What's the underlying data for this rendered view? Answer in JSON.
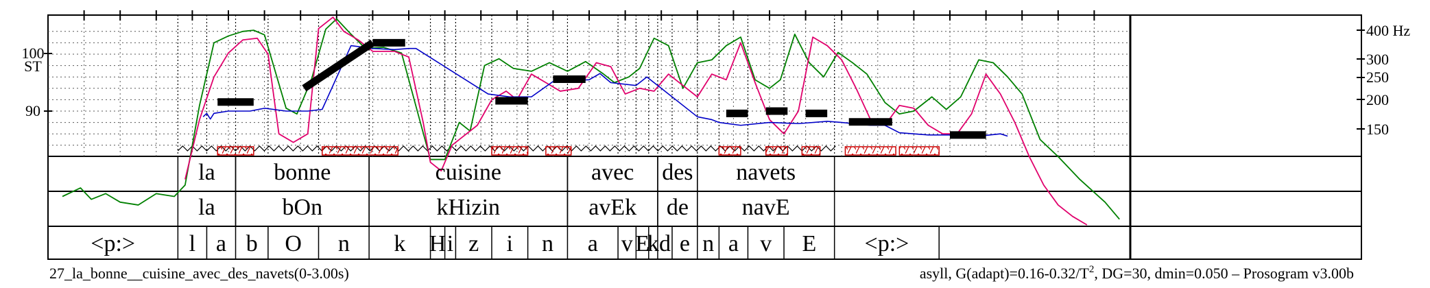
{
  "chart_data": {
    "type": "line",
    "time_range": [
      0,
      3.0
    ],
    "st_axis": {
      "ticks": [
        {
          "value": 90,
          "label": "90"
        },
        {
          "value": 100,
          "label": "100"
        }
      ],
      "unit": "ST"
    },
    "hz_axis": {
      "ticks": [
        {
          "value": 150,
          "label": "150"
        },
        {
          "value": 200,
          "label": "200"
        },
        {
          "value": 250,
          "label": "250"
        },
        {
          "value": 300,
          "label": "300"
        },
        {
          "value": 400,
          "label": "400 Hz"
        }
      ]
    },
    "words_tier": [
      {
        "start": 0.36,
        "end": 0.52,
        "label": "la"
      },
      {
        "start": 0.52,
        "end": 0.89,
        "label": "bonne"
      },
      {
        "start": 0.89,
        "end": 1.44,
        "label": "cuisine"
      },
      {
        "start": 1.44,
        "end": 1.69,
        "label": "avec"
      },
      {
        "start": 1.69,
        "end": 1.8,
        "label": "des"
      },
      {
        "start": 1.8,
        "end": 2.18,
        "label": "navets"
      }
    ],
    "syll_tier": [
      {
        "start": 0.36,
        "end": 0.52,
        "label": "la"
      },
      {
        "start": 0.52,
        "end": 0.89,
        "label": "bOn"
      },
      {
        "start": 0.89,
        "end": 1.44,
        "label": "kHizin"
      },
      {
        "start": 1.44,
        "end": 1.69,
        "label": "avEk"
      },
      {
        "start": 1.69,
        "end": 1.8,
        "label": "de"
      },
      {
        "start": 1.8,
        "end": 2.18,
        "label": "navE"
      }
    ],
    "phone_tier": [
      {
        "start": 0.0,
        "end": 0.36,
        "label": "<p:>"
      },
      {
        "start": 0.36,
        "end": 0.44,
        "label": "l"
      },
      {
        "start": 0.44,
        "end": 0.52,
        "label": "a"
      },
      {
        "start": 0.52,
        "end": 0.61,
        "label": "b"
      },
      {
        "start": 0.61,
        "end": 0.75,
        "label": "O"
      },
      {
        "start": 0.75,
        "end": 0.89,
        "label": "n"
      },
      {
        "start": 0.89,
        "end": 1.06,
        "label": "k"
      },
      {
        "start": 1.06,
        "end": 1.1,
        "label": "H"
      },
      {
        "start": 1.1,
        "end": 1.13,
        "label": "i"
      },
      {
        "start": 1.13,
        "end": 1.23,
        "label": "z"
      },
      {
        "start": 1.23,
        "end": 1.33,
        "label": "i"
      },
      {
        "start": 1.33,
        "end": 1.44,
        "label": "n"
      },
      {
        "start": 1.44,
        "end": 1.58,
        "label": "a"
      },
      {
        "start": 1.58,
        "end": 1.63,
        "label": "v"
      },
      {
        "start": 1.63,
        "end": 1.665,
        "label": "E"
      },
      {
        "start": 1.665,
        "end": 1.69,
        "label": "k"
      },
      {
        "start": 1.69,
        "end": 1.73,
        "label": "d"
      },
      {
        "start": 1.73,
        "end": 1.8,
        "label": "e"
      },
      {
        "start": 1.8,
        "end": 1.86,
        "label": "n"
      },
      {
        "start": 1.86,
        "end": 1.94,
        "label": "a"
      },
      {
        "start": 1.94,
        "end": 2.04,
        "label": "v"
      },
      {
        "start": 2.04,
        "end": 2.18,
        "label": "E"
      },
      {
        "start": 2.18,
        "end": 2.47,
        "label": "<p:>"
      }
    ],
    "nuclei": [
      {
        "start": 0.46,
        "end": 0.56
      },
      {
        "start": 0.71,
        "end": 0.99
      },
      {
        "start": 1.21,
        "end": 1.33
      },
      {
        "start": 1.4,
        "end": 1.49
      },
      {
        "start": 1.76,
        "end": 1.84
      },
      {
        "start": 1.9,
        "end": 1.97
      },
      {
        "start": 2.08,
        "end": 2.16
      },
      {
        "start": 2.22,
        "end": 2.36
      },
      {
        "start": 2.52,
        "end": 2.64
      }
    ],
    "stylized_pitch": [
      {
        "t0": 0.46,
        "st0": 91.6,
        "t1": 0.56,
        "st1": 91.6
      },
      {
        "t0": 0.71,
        "st0": 94.0,
        "t1": 0.89,
        "st1": 102.0
      },
      {
        "t0": 0.89,
        "st0": 102.0,
        "t1": 0.99,
        "st1": 102.0
      },
      {
        "t0": 1.21,
        "st0": 91.8,
        "t1": 1.33,
        "st1": 91.8
      },
      {
        "t0": 1.4,
        "st0": 95.6,
        "t1": 1.49,
        "st1": 95.6
      },
      {
        "t0": 1.76,
        "st0": 89.6,
        "t1": 1.84,
        "st1": 89.6
      },
      {
        "t0": 1.9,
        "st0": 90.0,
        "t1": 1.97,
        "st1": 90.0
      },
      {
        "t0": 2.08,
        "st0": 89.5,
        "t1": 2.16,
        "st1": 89.5
      },
      {
        "t0": 2.22,
        "st0": 88.1,
        "t1": 2.36,
        "st1": 88.1
      },
      {
        "t0": 2.52,
        "st0": 85.8,
        "t1": 2.64,
        "st1": 85.8
      }
    ],
    "pitch_contour": {
      "name": "F0",
      "color": "#0000c8",
      "x": [
        0.43,
        0.44,
        0.45,
        0.46,
        0.5,
        0.56,
        0.6,
        0.66,
        0.72,
        0.76,
        0.84,
        0.9,
        0.96,
        1.0,
        1.02,
        1.22,
        1.28,
        1.34,
        1.4,
        1.5,
        1.53,
        1.56,
        1.63,
        1.66,
        1.8,
        1.84,
        1.86,
        1.92,
        2.0,
        2.08,
        2.16,
        2.2,
        2.28,
        2.32,
        2.36,
        2.44,
        2.52,
        2.58,
        2.64,
        2.66
      ],
      "y": [
        89.0,
        89.6,
        88.6,
        89.6,
        90.0,
        90.0,
        90.5,
        90.0,
        90.0,
        90.3,
        101.5,
        101.0,
        100.8,
        101.0,
        101.0,
        93.0,
        92.5,
        92.5,
        95.2,
        95.5,
        96.6,
        95.0,
        94.5,
        96.0,
        89.0,
        88.5,
        88.0,
        87.5,
        88.0,
        87.8,
        88.2,
        88.0,
        87.5,
        87.5,
        86.2,
        85.8,
        85.8,
        85.6,
        86.0,
        85.6
      ]
    },
    "intensity": {
      "name": "intensity",
      "color": "#008000",
      "x": [
        0.04,
        0.09,
        0.12,
        0.16,
        0.2,
        0.25,
        0.3,
        0.35,
        0.38,
        0.42,
        0.46,
        0.5,
        0.54,
        0.57,
        0.6,
        0.66,
        0.69,
        0.73,
        0.77,
        0.8,
        0.84,
        0.88,
        0.93,
        0.98,
        1.03,
        1.06,
        1.1,
        1.14,
        1.17,
        1.21,
        1.25,
        1.29,
        1.34,
        1.39,
        1.44,
        1.49,
        1.54,
        1.57,
        1.61,
        1.64,
        1.68,
        1.72,
        1.76,
        1.8,
        1.84,
        1.88,
        1.92,
        1.96,
        2.0,
        2.03,
        2.07,
        2.11,
        2.15,
        2.19,
        2.23,
        2.27,
        2.32,
        2.36,
        2.4,
        2.45,
        2.49,
        2.53,
        2.58,
        2.62,
        2.66,
        2.7,
        2.75,
        2.8,
        2.86,
        2.93,
        2.97
      ],
      "y": [
        75.0,
        76.5,
        74.5,
        75.5,
        74.0,
        73.5,
        75.5,
        75.0,
        77.0,
        91.0,
        102.0,
        103.2,
        104.0,
        104.2,
        103.4,
        90.5,
        89.5,
        95.5,
        104.4,
        106.2,
        103.5,
        101.0,
        101.2,
        100.2,
        88.5,
        81.5,
        81.5,
        88.0,
        86.5,
        98.0,
        99.2,
        97.5,
        97.0,
        98.5,
        97.0,
        98.7,
        96.5,
        95.0,
        96.0,
        97.5,
        102.8,
        101.5,
        94.0,
        98.5,
        99.0,
        101.5,
        103.0,
        95.5,
        94.0,
        95.5,
        103.5,
        98.5,
        96.0,
        100.3,
        98.5,
        96.5,
        91.5,
        89.5,
        90.0,
        92.5,
        90.3,
        92.5,
        99.0,
        98.5,
        96.0,
        93.0,
        85.0,
        82.0,
        78.0,
        74.0,
        71.0
      ]
    },
    "intensity_secondary": {
      "name": "intensity-low",
      "color": "#e0006c",
      "x": [
        0.38,
        0.42,
        0.46,
        0.5,
        0.54,
        0.58,
        0.61,
        0.64,
        0.68,
        0.72,
        0.75,
        0.79,
        0.82,
        0.86,
        0.9,
        0.96,
        1.0,
        1.04,
        1.06,
        1.09,
        1.12,
        1.15,
        1.19,
        1.23,
        1.27,
        1.3,
        1.34,
        1.38,
        1.42,
        1.47,
        1.52,
        1.56,
        1.6,
        1.64,
        1.68,
        1.72,
        1.76,
        1.8,
        1.84,
        1.88,
        1.92,
        1.96,
        2.0,
        2.04,
        2.08,
        2.12,
        2.16,
        2.2,
        2.24,
        2.28,
        2.32,
        2.36,
        2.4,
        2.44,
        2.48,
        2.52,
        2.56,
        2.6,
        2.64,
        2.68,
        2.72,
        2.76,
        2.8,
        2.84,
        2.88
      ],
      "y": [
        78.0,
        88.5,
        96.0,
        100.2,
        102.5,
        102.8,
        100.0,
        86.0,
        84.5,
        86.0,
        104.5,
        106.5,
        104.0,
        102.5,
        100.5,
        100.5,
        99.5,
        88.0,
        81.0,
        79.5,
        84.0,
        85.5,
        87.5,
        92.0,
        93.5,
        92.0,
        96.5,
        95.0,
        93.5,
        94.0,
        98.5,
        97.8,
        93.0,
        94.0,
        93.5,
        96.5,
        94.5,
        92.5,
        96.5,
        95.5,
        102.0,
        95.0,
        88.5,
        86.0,
        90.0,
        103.0,
        101.5,
        99.0,
        94.0,
        88.5,
        87.5,
        91.0,
        90.5,
        87.5,
        86.0,
        86.0,
        89.5,
        96.5,
        93.0,
        88.0,
        82.0,
        77.0,
        73.5,
        71.5,
        70.0
      ]
    },
    "footer_left": "27_la_bonne__cuisine_avec_des_navets(0-3.00s)",
    "footer_right_prefix": "asyll, G(adapt)=0.16-0.32/T",
    "footer_right_sup": "2",
    "footer_right_suffix": ", DG=30, dmin=0.050 – Prosogram v3.00b"
  },
  "colors": {
    "stylization": "#000000",
    "nucleus_box": "#cc0000",
    "grid": "#555555"
  }
}
